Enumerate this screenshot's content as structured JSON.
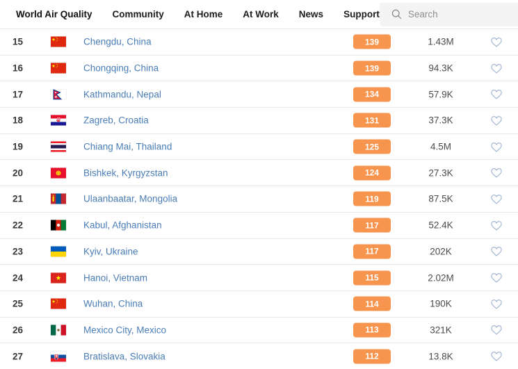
{
  "header": {
    "brand": "World Air Quality",
    "nav": [
      {
        "label": "Community"
      },
      {
        "label": "At Home"
      },
      {
        "label": "At Work"
      },
      {
        "label": "News"
      },
      {
        "label": "Support"
      }
    ],
    "search": {
      "placeholder": "Search",
      "icon": "search-icon"
    }
  },
  "colors": {
    "aqi_badge": "#f7954e",
    "aqi_badge_text": "#ffffff",
    "city_link": "#4a7db6",
    "heart_outline": "#9db3ce",
    "rank_text": "#383838",
    "followers_text": "#4b4b4b",
    "divider": "#e9e9e9",
    "search_bg": "#f4f4f4"
  },
  "ranking": {
    "rows": [
      {
        "rank": "15",
        "flag": "china",
        "city": "Chengdu, China",
        "aqi": "139",
        "followers": "1.43M"
      },
      {
        "rank": "16",
        "flag": "china",
        "city": "Chongqing, China",
        "aqi": "139",
        "followers": "94.3K"
      },
      {
        "rank": "17",
        "flag": "nepal",
        "city": "Kathmandu, Nepal",
        "aqi": "134",
        "followers": "57.9K"
      },
      {
        "rank": "18",
        "flag": "croatia",
        "city": "Zagreb, Croatia",
        "aqi": "131",
        "followers": "37.3K"
      },
      {
        "rank": "19",
        "flag": "thailand",
        "city": "Chiang Mai, Thailand",
        "aqi": "125",
        "followers": "4.5M"
      },
      {
        "rank": "20",
        "flag": "kyrgyzstan",
        "city": "Bishkek, Kyrgyzstan",
        "aqi": "124",
        "followers": "27.3K"
      },
      {
        "rank": "21",
        "flag": "mongolia",
        "city": "Ulaanbaatar, Mongolia",
        "aqi": "119",
        "followers": "87.5K"
      },
      {
        "rank": "22",
        "flag": "afghanistan",
        "city": "Kabul, Afghanistan",
        "aqi": "117",
        "followers": "52.4K"
      },
      {
        "rank": "23",
        "flag": "ukraine",
        "city": "Kyiv, Ukraine",
        "aqi": "117",
        "followers": "202K"
      },
      {
        "rank": "24",
        "flag": "vietnam",
        "city": "Hanoi, Vietnam",
        "aqi": "115",
        "followers": "2.02M"
      },
      {
        "rank": "25",
        "flag": "china",
        "city": "Wuhan, China",
        "aqi": "114",
        "followers": "190K"
      },
      {
        "rank": "26",
        "flag": "mexico",
        "city": "Mexico City, Mexico",
        "aqi": "113",
        "followers": "321K"
      },
      {
        "rank": "27",
        "flag": "slovakia",
        "city": "Bratislava, Slovakia",
        "aqi": "112",
        "followers": "13.8K"
      }
    ]
  }
}
